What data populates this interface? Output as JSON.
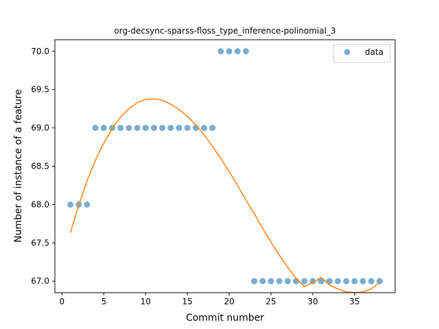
{
  "chart_data": {
    "type": "scatter",
    "title": "org-decsync-sparss-floss_type_inference-polinomial_3",
    "xlabel": "Commit number",
    "ylabel": "Number of instance of a feature",
    "xlim": [
      -0.85,
      39.85
    ],
    "ylim": [
      66.85,
      70.15
    ],
    "xticks": [
      0,
      5,
      10,
      15,
      20,
      25,
      30,
      35
    ],
    "yticks": [
      67.0,
      67.5,
      68.0,
      68.5,
      69.0,
      69.5,
      70.0
    ],
    "ytick_labels": [
      "67.0",
      "67.5",
      "68.0",
      "68.5",
      "69.0",
      "69.5",
      "70.0"
    ],
    "grid": false,
    "legend_position": "top-right",
    "series": [
      {
        "name": "data",
        "kind": "scatter",
        "color": "#1f77b4",
        "x": [
          1,
          2,
          3,
          4,
          5,
          6,
          7,
          8,
          9,
          10,
          11,
          12,
          13,
          14,
          15,
          16,
          17,
          18,
          19,
          20,
          21,
          22,
          23,
          24,
          25,
          26,
          27,
          28,
          29,
          30,
          31,
          32,
          33,
          34,
          35,
          36,
          37,
          38
        ],
        "y": [
          68,
          68,
          68,
          69,
          69,
          69,
          69,
          69,
          69,
          69,
          69,
          69,
          69,
          69,
          69,
          69,
          69,
          69,
          70,
          70,
          70,
          70,
          67,
          67,
          67,
          67,
          67,
          67,
          67,
          67,
          67,
          67,
          67,
          67,
          67,
          67,
          67,
          67
        ]
      },
      {
        "kind": "line",
        "color": "#ff7f0e",
        "x": [
          1,
          2,
          3,
          4,
          5,
          6,
          7,
          8,
          9,
          10,
          11,
          12,
          13,
          14,
          15,
          16,
          17,
          18,
          19,
          20,
          21,
          22,
          23,
          24,
          25,
          26,
          27,
          28,
          29,
          30,
          31,
          32,
          33,
          34,
          35,
          36,
          37,
          38
        ],
        "y": [
          67.63,
          67.99,
          68.31,
          68.58,
          68.8,
          68.99,
          69.14,
          69.25,
          69.33,
          69.37,
          69.38,
          69.36,
          69.31,
          69.24,
          69.15,
          69.04,
          68.91,
          68.76,
          68.6,
          68.43,
          68.25,
          68.06,
          67.88,
          67.69,
          67.51,
          67.34,
          67.18,
          67.04,
          66.93,
          66.98,
          67.05,
          66.95,
          66.9,
          66.86,
          66.85,
          66.86,
          66.9,
          66.98
        ]
      }
    ]
  }
}
